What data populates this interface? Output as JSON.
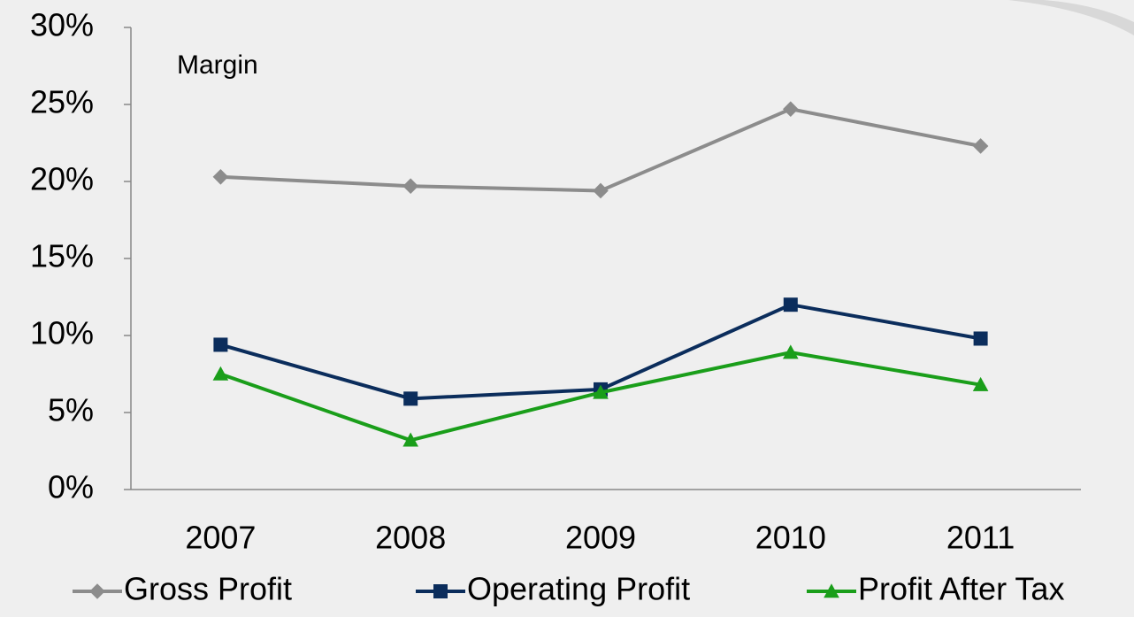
{
  "chart_data": {
    "type": "line",
    "annotation": "Margin",
    "categories": [
      "2007",
      "2008",
      "2009",
      "2010",
      "2011"
    ],
    "series": [
      {
        "name": "Gross Profit",
        "color": "#8c8c8c",
        "marker": "diamond",
        "values": [
          20.3,
          19.7,
          19.4,
          24.7,
          22.3
        ]
      },
      {
        "name": "Operating Profit",
        "color": "#0b2d5c",
        "marker": "square",
        "values": [
          9.4,
          5.9,
          6.5,
          12.0,
          9.8
        ]
      },
      {
        "name": "Profit After Tax",
        "color": "#1a9e1a",
        "marker": "triangle",
        "values": [
          7.5,
          3.2,
          6.3,
          8.9,
          6.8
        ]
      }
    ],
    "ylim": [
      0,
      30
    ],
    "yticks": [
      {
        "value": 0,
        "label": "0%"
      },
      {
        "value": 5,
        "label": "5%"
      },
      {
        "value": 10,
        "label": "10%"
      },
      {
        "value": 15,
        "label": "15%"
      },
      {
        "value": 20,
        "label": "20%"
      },
      {
        "value": 25,
        "label": "25%"
      },
      {
        "value": 30,
        "label": "30%"
      }
    ],
    "grid": false,
    "legend": "bottom"
  }
}
